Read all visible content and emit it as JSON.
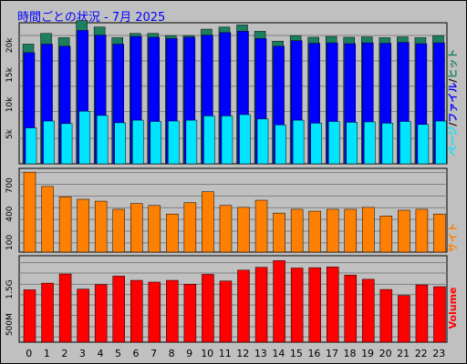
{
  "title": "時間ごとの状況 - 7月 2025",
  "colors": {
    "background": "#c0c0c0",
    "hits": "#1b7f5f",
    "files": "#0000ff",
    "pages": "#00e5ff",
    "sites": "#ff8000",
    "volume": "#ff0000",
    "grid": "#808080"
  },
  "chart_data": [
    {
      "type": "bar",
      "panel": "hits",
      "categories": [
        "0",
        "1",
        "2",
        "3",
        "4",
        "5",
        "6",
        "7",
        "8",
        "9",
        "10",
        "11",
        "12",
        "13",
        "14",
        "15",
        "16",
        "17",
        "18",
        "19",
        "20",
        "21",
        "22",
        "23"
      ],
      "series": [
        {
          "name": "ヒット",
          "values": [
            28000,
            30500,
            29500,
            33500,
            32000,
            29500,
            30500,
            30500,
            30000,
            30000,
            31500,
            32000,
            32500,
            31000,
            28700,
            30000,
            29600,
            29800,
            29600,
            29700,
            29500,
            29700,
            29500,
            30000
          ]
        },
        {
          "name": "ファイル",
          "values": [
            26000,
            28000,
            27500,
            31200,
            30100,
            28000,
            29800,
            29600,
            29300,
            29600,
            30100,
            30700,
            31000,
            29300,
            27500,
            28800,
            28200,
            28300,
            28100,
            28300,
            28200,
            28400,
            28100,
            28300
          ]
        },
        {
          "name": "ページ",
          "values": [
            8400,
            10000,
            9400,
            12300,
            11300,
            9600,
            10200,
            9900,
            10000,
            10200,
            11200,
            11200,
            11500,
            10500,
            9100,
            10200,
            9500,
            9900,
            9700,
            9800,
            9500,
            9900,
            9200,
            10000
          ]
        }
      ],
      "yticks": [
        "5k",
        "10k",
        "15k",
        "20k"
      ],
      "ylim": [
        0,
        33000
      ],
      "axis_label": "ページ/ファイル/ヒット",
      "axis_label_parts": [
        "ページ",
        "/",
        "ファイル",
        "/",
        "ヒット"
      ]
    },
    {
      "type": "bar",
      "panel": "sites",
      "categories": [
        "0",
        "1",
        "2",
        "3",
        "4",
        "5",
        "6",
        "7",
        "8",
        "9",
        "10",
        "11",
        "12",
        "13",
        "14",
        "15",
        "16",
        "17",
        "18",
        "19",
        "20",
        "21",
        "22",
        "23"
      ],
      "series": [
        {
          "name": "サイト",
          "values": [
            840,
            690,
            580,
            555,
            535,
            450,
            510,
            490,
            400,
            520,
            635,
            490,
            470,
            545,
            410,
            450,
            430,
            450,
            450,
            470,
            380,
            440,
            450,
            400
          ]
        }
      ],
      "yticks": [
        "100",
        "400",
        "700"
      ],
      "ylim": [
        0,
        880
      ],
      "axis_label": "サイト"
    },
    {
      "type": "bar",
      "panel": "volume",
      "categories": [
        "0",
        "1",
        "2",
        "3",
        "4",
        "5",
        "6",
        "7",
        "8",
        "9",
        "10",
        "11",
        "12",
        "13",
        "14",
        "15",
        "16",
        "17",
        "18",
        "19",
        "20",
        "21",
        "22",
        "23"
      ],
      "series": [
        {
          "name": "Volume",
          "values": [
            1.49,
            1.68,
            1.94,
            1.51,
            1.64,
            1.88,
            1.76,
            1.71,
            1.76,
            1.65,
            1.93,
            1.74,
            2.05,
            2.13,
            2.32,
            2.11,
            2.12,
            2.14,
            1.91,
            1.79,
            1.5,
            1.33,
            1.63,
            1.58
          ]
        }
      ],
      "yticks": [
        "500M",
        "1.5G"
      ],
      "ylim": [
        0,
        2.46
      ],
      "unit": "G",
      "axis_label": "Volume"
    }
  ]
}
